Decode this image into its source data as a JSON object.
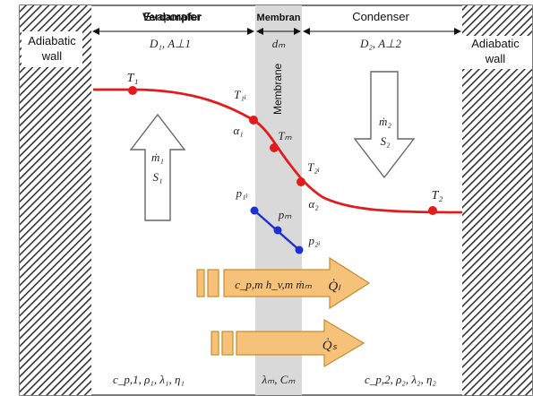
{
  "header": {
    "evaporator_overprint": "Verdampfer",
    "evaporator": "Evaporator",
    "membrane": "Membran",
    "condenser": "Condenser"
  },
  "walls": {
    "left_label_line1": "Adiabatic",
    "left_label_line2": "wall",
    "right_label_line1": "Adiabatic",
    "right_label_line2": "wall"
  },
  "dimensions": {
    "evaporator": "D₁, A⊥1",
    "membrane": "dₘ",
    "condenser": "D₂, A⊥2"
  },
  "membrane_vertical_label": "Membrane",
  "temperature_points": {
    "t1": "T₁",
    "t1i": "T₁ᵢ",
    "tm": "Tₘ",
    "t2i": "T₂ᵢ",
    "t2": "T₂",
    "alpha1": "α₁",
    "alpha2": "α₂"
  },
  "pressure_points": {
    "p1i": "p₁ᵢ",
    "pm": "pₘ",
    "p2i": "p₂ᵢ"
  },
  "flow_arrows": {
    "up_line1": "ṁ₁",
    "up_line2": "S₁",
    "down_line1": "ṁ₂",
    "down_line2": "S₂",
    "heat_latent_left": "c_p,m  h_v,m ṁₘ",
    "heat_latent_right": "Q̇ₗ",
    "heat_sensible": "Q̇ₛ"
  },
  "properties": {
    "evaporator": "c_p,1, ρ₁, λ₁, η₁",
    "membrane": "λₘ, Cₘ",
    "condenser": "c_p,2, ρ₂, λ₂, η₂"
  },
  "colors": {
    "temperature_curve": "#e31b1b",
    "pressure_curve": "#1c2fd6",
    "heat_arrow_fill": "#f6c27a",
    "heat_arrow_stroke": "#c98a2c",
    "membrane_band": "#d9d9d9",
    "wall_hatch": "#333333"
  }
}
